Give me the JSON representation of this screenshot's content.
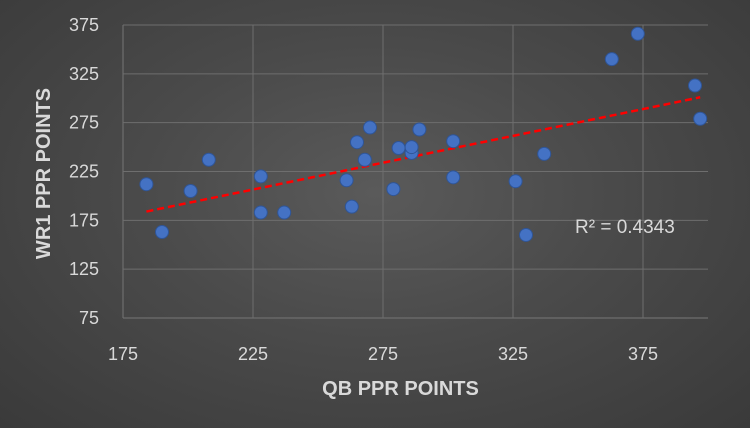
{
  "chart_data": {
    "type": "scatter",
    "xlabel": "QB PPR POINTS",
    "ylabel": "WR1 PPR POINTS",
    "xlim": [
      175,
      400
    ],
    "ylim": [
      75,
      375
    ],
    "xticks": [
      175,
      225,
      275,
      325,
      375
    ],
    "yticks": [
      75,
      125,
      175,
      225,
      275,
      325,
      375
    ],
    "grid": true,
    "colors": {
      "point": "#4472c4",
      "trendline": "#ff0000",
      "grid": "#6e6e6e",
      "text": "#d9d9d9"
    },
    "series": [
      {
        "points": [
          {
            "x": 184,
            "y": 212
          },
          {
            "x": 190,
            "y": 163
          },
          {
            "x": 201,
            "y": 205
          },
          {
            "x": 208,
            "y": 237
          },
          {
            "x": 228,
            "y": 220
          },
          {
            "x": 228,
            "y": 183
          },
          {
            "x": 237,
            "y": 183
          },
          {
            "x": 261,
            "y": 216
          },
          {
            "x": 263,
            "y": 189
          },
          {
            "x": 265,
            "y": 255
          },
          {
            "x": 268,
            "y": 237
          },
          {
            "x": 270,
            "y": 270
          },
          {
            "x": 279,
            "y": 207
          },
          {
            "x": 281,
            "y": 249
          },
          {
            "x": 286,
            "y": 244
          },
          {
            "x": 286,
            "y": 250
          },
          {
            "x": 289,
            "y": 268
          },
          {
            "x": 302,
            "y": 256
          },
          {
            "x": 302,
            "y": 219
          },
          {
            "x": 326,
            "y": 215
          },
          {
            "x": 330,
            "y": 160
          },
          {
            "x": 337,
            "y": 243
          },
          {
            "x": 363,
            "y": 340
          },
          {
            "x": 373,
            "y": 366
          },
          {
            "x": 395,
            "y": 313
          },
          {
            "x": 397,
            "y": 279
          }
        ]
      }
    ],
    "trendline": {
      "type": "linear",
      "x": [
        184,
        397
      ],
      "y": [
        184,
        301
      ]
    },
    "annotation": "R² = 0.4343"
  }
}
